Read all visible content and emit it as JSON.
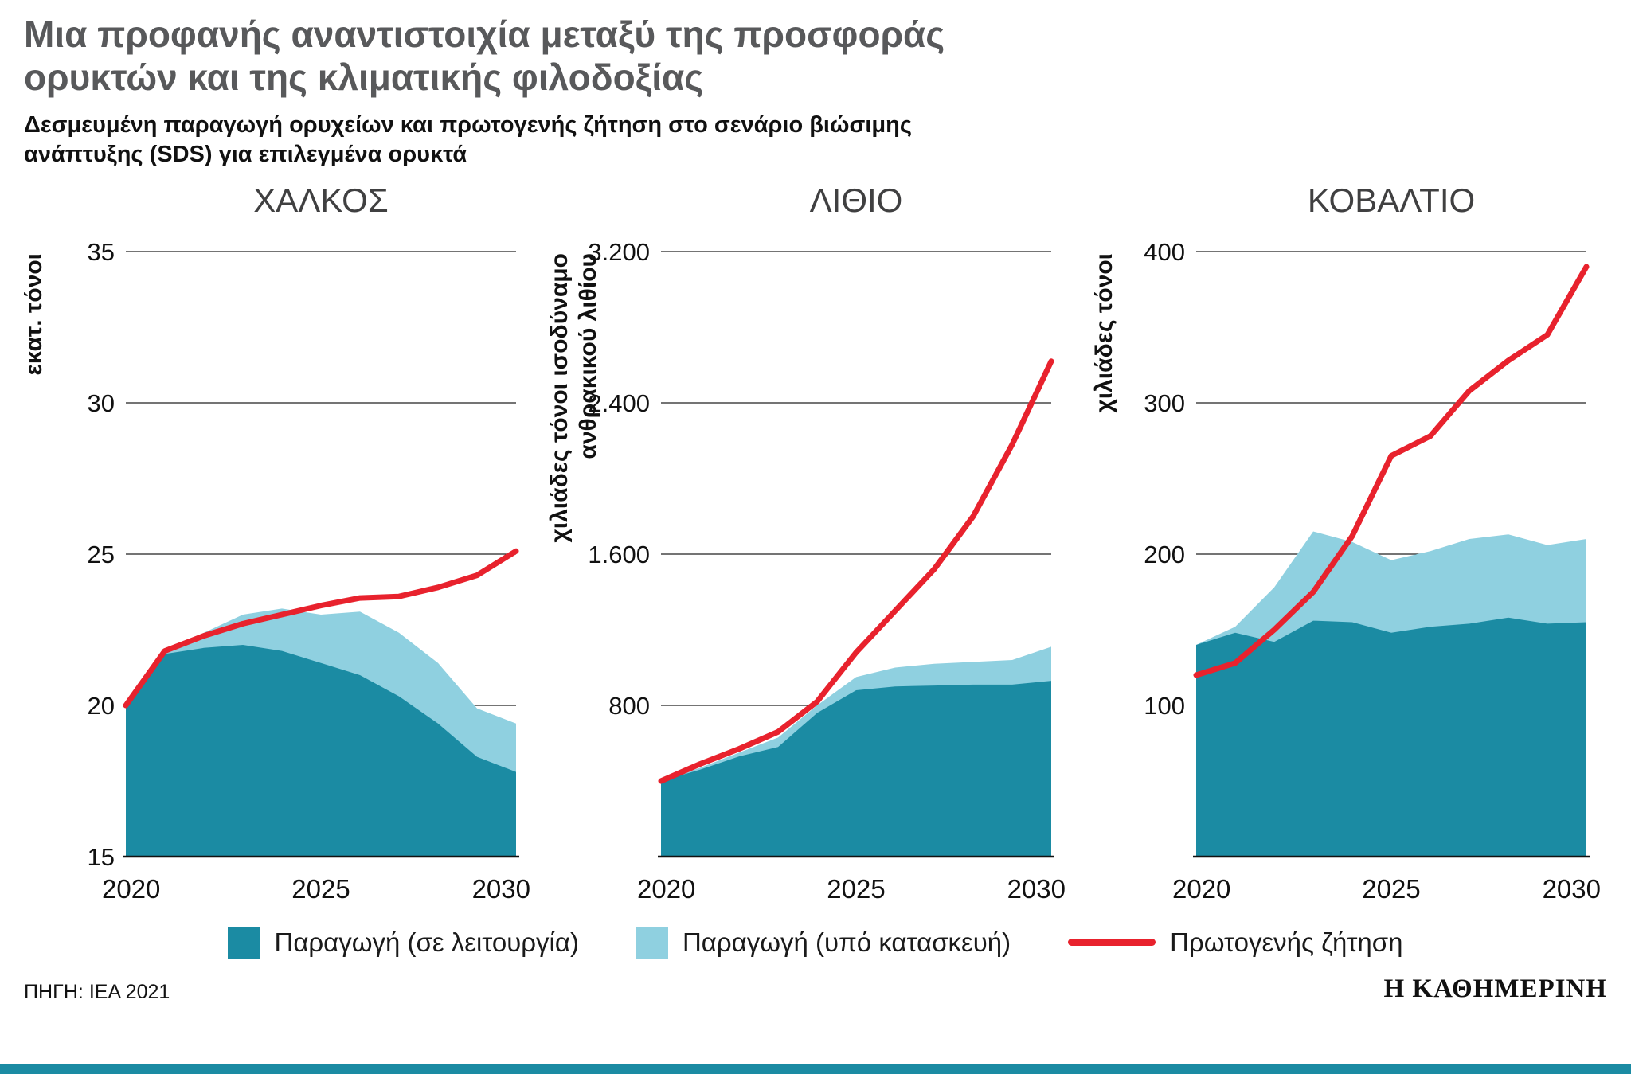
{
  "header": {
    "title_line1": "Μια προφανής αναντιστοιχία μεταξύ της προσφοράς",
    "title_line2": "ορυκτών και της κλιματικής φιλοδοξίας",
    "subtitle_line1": "Δεσμευμένη παραγωγή ορυχείων και πρωτογενής ζήτηση στο σενάριο βιώσιμης",
    "subtitle_line2": "ανάπτυξης (SDS) για επιλεγμένα ορυκτά"
  },
  "colors": {
    "operating": "#1b8ba3",
    "construction": "#8fd0e0",
    "demand": "#e8222d",
    "title_gray": "#58595b",
    "bottom_bar": "#1b8ba3"
  },
  "chart_data": [
    {
      "type": "area",
      "title": "ΧΑΛΚΟΣ",
      "ylabel_lines": [
        "εκατ. τόνοι"
      ],
      "ylim": [
        15,
        35
      ],
      "yticks": [
        15,
        20,
        25,
        30,
        35
      ],
      "ytick_labels": [
        "15",
        "20",
        "25",
        "30",
        "35"
      ],
      "x": [
        2020,
        2021,
        2022,
        2023,
        2024,
        2025,
        2026,
        2027,
        2028,
        2029,
        2030
      ],
      "xticks": [
        2020,
        2025,
        2030
      ],
      "series": [
        {
          "name": "Παραγωγή (σε λειτουργία)",
          "role": "operating",
          "values": [
            20.0,
            21.7,
            21.9,
            22.0,
            21.8,
            21.4,
            21.0,
            20.3,
            19.4,
            18.3,
            17.8
          ]
        },
        {
          "name": "Παραγωγή (υπό κατασκευή)",
          "role": "total",
          "values": [
            20.0,
            21.8,
            22.4,
            23.0,
            23.2,
            23.0,
            23.1,
            22.4,
            21.4,
            19.9,
            19.4
          ]
        },
        {
          "name": "Πρωτογενής ζήτηση",
          "role": "demand",
          "values": [
            20.0,
            21.8,
            22.3,
            22.7,
            23.0,
            23.3,
            23.55,
            23.6,
            23.9,
            24.3,
            25.1
          ]
        }
      ]
    },
    {
      "type": "area",
      "title": "ΛΙΘΙΟ",
      "ylabel_lines": [
        "χιλιάδες τόνοι ισοδύναμο",
        "ανθρακικού λιθίου"
      ],
      "ylim": [
        0,
        3200
      ],
      "yticks": [
        800,
        1600,
        2400,
        3200
      ],
      "ytick_labels": [
        "800",
        "1.600",
        "2.400",
        "3.200"
      ],
      "x": [
        2020,
        2021,
        2022,
        2023,
        2024,
        2025,
        2026,
        2027,
        2028,
        2029,
        2030
      ],
      "xticks": [
        2020,
        2025,
        2030
      ],
      "series": [
        {
          "name": "Παραγωγή (σε λειτουργία)",
          "role": "operating",
          "values": [
            400,
            460,
            530,
            580,
            760,
            880,
            900,
            905,
            910,
            910,
            930
          ]
        },
        {
          "name": "Παραγωγή (υπό κατασκευή)",
          "role": "total",
          "values": [
            400,
            470,
            550,
            630,
            800,
            950,
            1000,
            1020,
            1030,
            1040,
            1110
          ]
        },
        {
          "name": "Πρωτογενής ζήτηση",
          "role": "demand",
          "values": [
            400,
            490,
            570,
            660,
            820,
            1080,
            1300,
            1520,
            1800,
            2180,
            2620
          ]
        }
      ]
    },
    {
      "type": "area",
      "title": "ΚΟΒΑΛΤΙΟ",
      "ylabel_lines": [
        "χιλιάδες τόνοι"
      ],
      "ylim": [
        0,
        400
      ],
      "yticks": [
        100,
        200,
        300,
        400
      ],
      "ytick_labels": [
        "100",
        "200",
        "300",
        "400"
      ],
      "x": [
        2020,
        2021,
        2022,
        2023,
        2024,
        2025,
        2026,
        2027,
        2028,
        2029,
        2030
      ],
      "xticks": [
        2020,
        2025,
        2030
      ],
      "series": [
        {
          "name": "Παραγωγή (σε λειτουργία)",
          "role": "operating",
          "values": [
            140,
            148,
            142,
            156,
            155,
            148,
            152,
            154,
            158,
            154,
            155
          ]
        },
        {
          "name": "Παραγωγή (υπό κατασκευή)",
          "role": "total",
          "values": [
            140,
            152,
            178,
            215,
            208,
            196,
            202,
            210,
            213,
            206,
            210
          ]
        },
        {
          "name": "Πρωτογενής ζήτηση",
          "role": "demand",
          "values": [
            120,
            128,
            150,
            175,
            212,
            265,
            278,
            308,
            328,
            345,
            390
          ]
        }
      ]
    }
  ],
  "legend": {
    "items": [
      {
        "label": "Παραγωγή (σε λειτουργία)",
        "color": "#1b8ba3",
        "type": "area"
      },
      {
        "label": "Παραγωγή (υπό κατασκευή)",
        "color": "#8fd0e0",
        "type": "area"
      },
      {
        "label": "Πρωτογενής ζήτηση",
        "color": "#e8222d",
        "type": "line"
      }
    ]
  },
  "footer": {
    "source": "ΠΗΓΗ: ΙΕΑ 2021",
    "brand": "Η ΚΑΘΗΜΕΡΙΝΗ"
  }
}
